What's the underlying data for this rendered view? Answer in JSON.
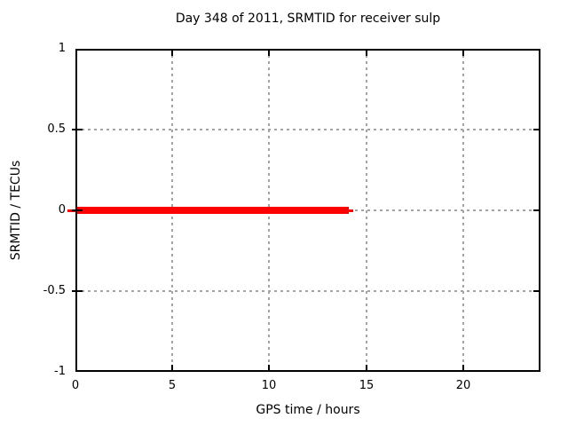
{
  "chart_data": {
    "type": "line",
    "title": "Day 348 of 2011, SRMTID for receiver sulp",
    "xlabel": "GPS time / hours",
    "ylabel": "SRMTID / TECUs",
    "xlim": [
      0,
      24
    ],
    "ylim": [
      -1,
      1
    ],
    "xticks": [
      0,
      5,
      10,
      15,
      20
    ],
    "yticks": [
      -1,
      -0.5,
      0,
      0.5,
      1
    ],
    "grid": "dashed",
    "legend": "none",
    "series": [
      {
        "name": "SRMTID",
        "color": "#ff0000",
        "x": [
          0,
          14.1
        ],
        "y": [
          0,
          0
        ]
      }
    ],
    "colors": {
      "background": "#ffffff",
      "border": "#000000",
      "grid": "#a4a4a4",
      "text": "#000000",
      "line": "#ff0000"
    }
  }
}
